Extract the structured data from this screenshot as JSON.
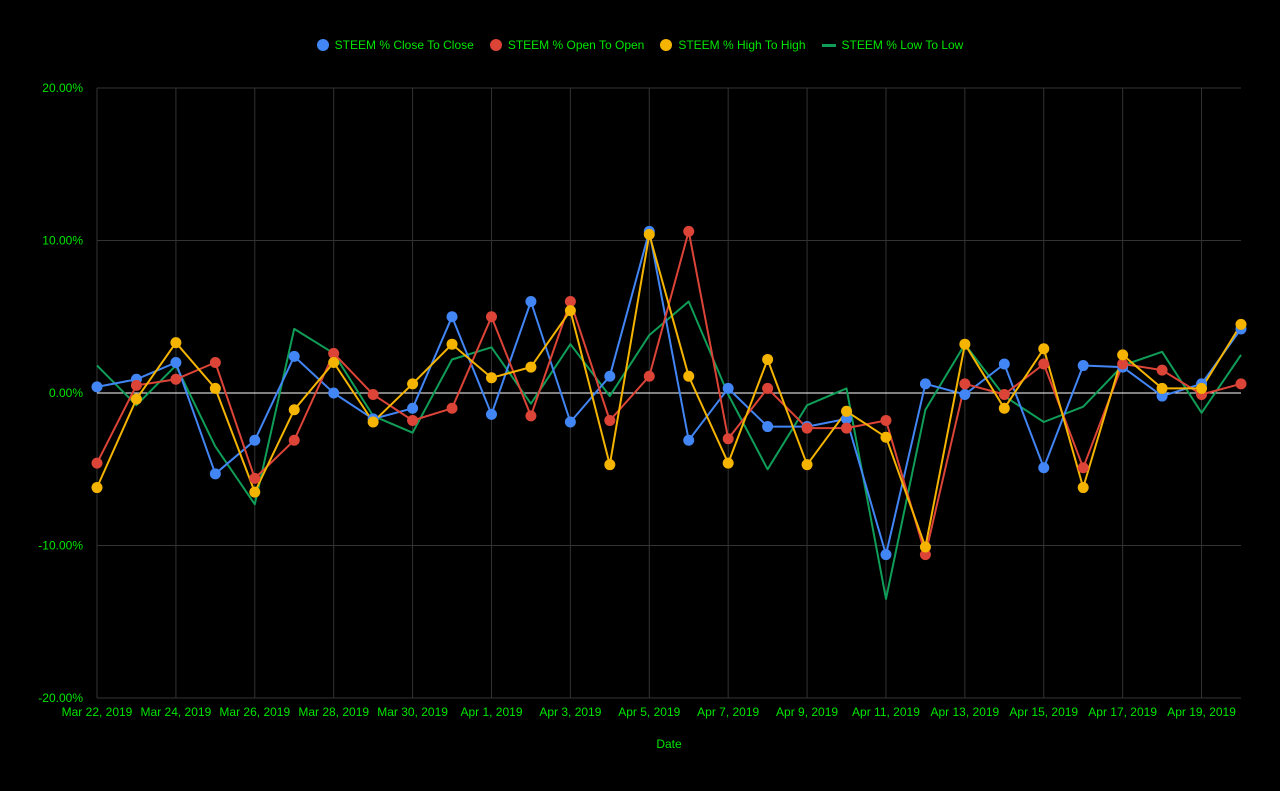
{
  "chart_data": {
    "type": "line",
    "title": "",
    "xlabel": "Date",
    "ylabel": "",
    "ylim": [
      -20,
      20
    ],
    "yticks": [
      -20,
      -10,
      0,
      10,
      20
    ],
    "ytick_labels": [
      "-20.00%",
      "-10.00%",
      "0.00%",
      "10.00%",
      "20.00%"
    ],
    "x": [
      "Mar 22, 2019",
      "Mar 23, 2019",
      "Mar 24, 2019",
      "Mar 25, 2019",
      "Mar 26, 2019",
      "Mar 27, 2019",
      "Mar 28, 2019",
      "Mar 29, 2019",
      "Mar 30, 2019",
      "Mar 31, 2019",
      "Apr 1, 2019",
      "Apr 2, 2019",
      "Apr 3, 2019",
      "Apr 4, 2019",
      "Apr 5, 2019",
      "Apr 6, 2019",
      "Apr 7, 2019",
      "Apr 8, 2019",
      "Apr 9, 2019",
      "Apr 10, 2019",
      "Apr 11, 2019",
      "Apr 12, 2019",
      "Apr 13, 2019",
      "Apr 14, 2019",
      "Apr 15, 2019",
      "Apr 16, 2019",
      "Apr 17, 2019",
      "Apr 18, 2019",
      "Apr 19, 2019",
      "Apr 20, 2019"
    ],
    "xtick_labels": [
      "Mar 22, 2019",
      "Mar 24, 2019",
      "Mar 26, 2019",
      "Mar 28, 2019",
      "Mar 30, 2019",
      "Apr 1, 2019",
      "Apr 3, 2019",
      "Apr 5, 2019",
      "Apr 7, 2019",
      "Apr 9, 2019",
      "Apr 11, 2019",
      "Apr 13, 2019",
      "Apr 15, 2019",
      "Apr 17, 2019",
      "Apr 19, 2019"
    ],
    "grid": true,
    "legend_position": "top",
    "series": [
      {
        "name": "STEEM % Close To Close",
        "color": "#4285F4",
        "markers": true,
        "values": [
          0.4,
          0.9,
          2.0,
          -5.3,
          -3.1,
          2.4,
          0.0,
          -1.7,
          -1.0,
          5.0,
          -1.4,
          6.0,
          -1.9,
          1.1,
          10.6,
          -3.1,
          0.3,
          -2.2,
          -2.2,
          -1.7,
          -10.6,
          0.6,
          -0.1,
          1.9,
          -4.9,
          1.8,
          1.7,
          -0.2,
          0.6,
          4.2
        ]
      },
      {
        "name": "STEEM % Open To Open",
        "color": "#DB4437",
        "markers": true,
        "values": [
          -4.6,
          0.5,
          0.9,
          2.0,
          -5.6,
          -3.1,
          2.6,
          -0.1,
          -1.8,
          -1.0,
          5.0,
          -1.5,
          6.0,
          -1.8,
          1.1,
          10.6,
          -3.0,
          0.3,
          -2.3,
          -2.3,
          -1.8,
          -10.6,
          0.6,
          -0.1,
          1.9,
          -4.9,
          1.9,
          1.5,
          -0.1,
          0.6
        ]
      },
      {
        "name": "STEEM % High To High",
        "color": "#F4B400",
        "markers": true,
        "values": [
          -6.2,
          -0.4,
          3.3,
          0.3,
          -6.5,
          -1.1,
          2.0,
          -1.9,
          0.6,
          3.2,
          1.0,
          1.7,
          5.4,
          -4.7,
          10.4,
          1.1,
          -4.6,
          2.2,
          -4.7,
          -1.2,
          -2.9,
          -10.1,
          3.2,
          -1.0,
          2.9,
          -6.2,
          2.5,
          0.3,
          0.3,
          4.5
        ]
      },
      {
        "name": "STEEM % Low To Low",
        "color": "#0F9D58",
        "markers": false,
        "values": [
          1.8,
          -0.8,
          1.8,
          -3.5,
          -7.3,
          4.2,
          2.6,
          -1.5,
          -2.6,
          2.2,
          3.0,
          -0.7,
          3.2,
          -0.2,
          3.8,
          6.0,
          -0.1,
          -5.0,
          -0.8,
          0.3,
          -13.5,
          -1.1,
          3.2,
          -0.2,
          -1.9,
          -0.9,
          1.8,
          2.7,
          -1.3,
          2.5
        ]
      }
    ]
  },
  "colors": {
    "background": "#000000",
    "text": "#00E600",
    "grid": "#333333",
    "zero_line": "#FFFFFF"
  }
}
